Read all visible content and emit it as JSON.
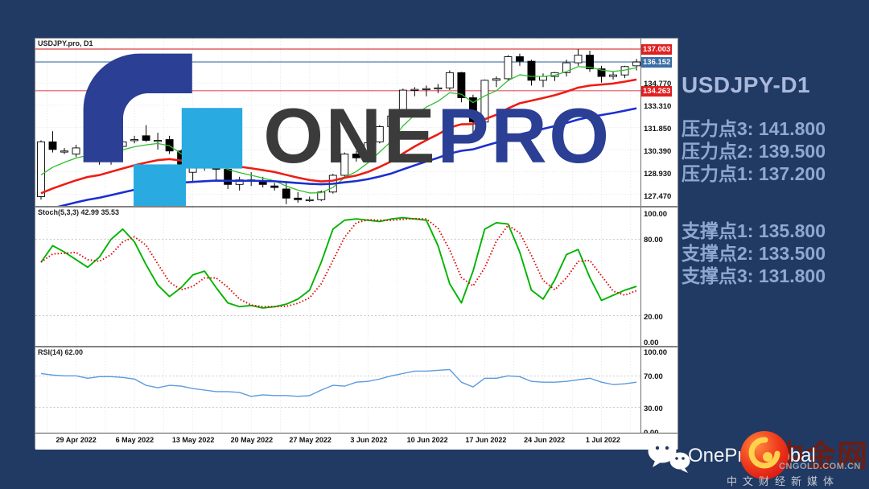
{
  "colors": {
    "page_bg": "#203a64",
    "tag_red": "#e02020",
    "tag_blue": "#3a6ea5",
    "side_text": "#90a7cf",
    "side_title": "#aab9dc",
    "cngold_red": "#6e1d12"
  },
  "logo": {
    "one": "ONE",
    "pro": "PRO"
  },
  "chart_window": {
    "symbol_label": "USDJPY.pro, D1",
    "stoch_label": "Stoch(5,3,3) 42.99 35.53",
    "rsi_label": "RSI(14) 62.00",
    "price_axis_labels": [
      {
        "text": "137.003",
        "value": 137.003,
        "style": "red"
      },
      {
        "text": "136.152",
        "value": 136.152,
        "style": "blue"
      },
      {
        "text": "134.770",
        "value": 134.77,
        "style": "plain"
      },
      {
        "text": "134.263",
        "value": 134.263,
        "style": "red"
      },
      {
        "text": "133.310",
        "value": 133.31,
        "style": "plain"
      },
      {
        "text": "131.850",
        "value": 131.85,
        "style": "plain"
      },
      {
        "text": "130.390",
        "value": 130.39,
        "style": "plain"
      },
      {
        "text": "128.930",
        "value": 128.93,
        "style": "plain"
      },
      {
        "text": "127.470",
        "value": 127.47,
        "style": "plain"
      }
    ],
    "stoch_axis_labels": [
      {
        "text": "100.00",
        "value": 100
      },
      {
        "text": "80.00",
        "value": 80
      },
      {
        "text": "20.00",
        "value": 20
      },
      {
        "text": "0.00",
        "value": 0
      }
    ],
    "rsi_axis_labels": [
      {
        "text": "100.00",
        "value": 100
      },
      {
        "text": "70.00",
        "value": 70
      },
      {
        "text": "30.00",
        "value": 30
      },
      {
        "text": "0.00",
        "value": 0
      }
    ]
  },
  "side_panel": {
    "title": "USDJPY-D1",
    "resistance": [
      {
        "label": "压力点3:",
        "value": "141.800"
      },
      {
        "label": "压力点2:",
        "value": "139.500"
      },
      {
        "label": "压力点1:",
        "value": "137.200"
      }
    ],
    "support": [
      {
        "label": "支撑点1:",
        "value": "135.800"
      },
      {
        "label": "支撑点2:",
        "value": "133.500"
      },
      {
        "label": "支撑点3:",
        "value": "131.800"
      }
    ]
  },
  "footer": {
    "brand": "OnePro Global",
    "cngold_name": "中金网",
    "cngold_domain": "CNGOLD.COM.CN",
    "tagline": "中文财经新媒体"
  },
  "chart_data": {
    "type": "candlestick",
    "symbol": "USDJPY",
    "timeframe": "D1",
    "x_labels": [
      "29 Apr 2022",
      "6 May 2022",
      "13 May 2022",
      "20 May 2022",
      "27 May 2022",
      "3 Jun 2022",
      "10 Jun 2022",
      "17 Jun 2022",
      "24 Jun 2022",
      "1 Jul 2022"
    ],
    "price_range": [
      127.05,
      137.45
    ],
    "price_gridlines": [
      136.23,
      134.77,
      133.31,
      131.85,
      130.39,
      128.93,
      127.47
    ],
    "overlay_lines": [
      {
        "price": 137.003,
        "color": "#cc1111",
        "width": 1
      },
      {
        "price": 136.152,
        "color": "#7b9cc0",
        "width": 1.6
      },
      {
        "price": 134.263,
        "color": "#e05565",
        "width": 1.2
      }
    ],
    "levels": {
      "resistance": [
        141.8,
        139.5,
        137.2
      ],
      "support": [
        135.8,
        133.5,
        131.8
      ]
    },
    "candles": [
      [
        127.3,
        131.0,
        127.1,
        130.9
      ],
      [
        130.9,
        131.6,
        130.2,
        130.4
      ],
      [
        130.3,
        130.5,
        130.1,
        130.3
      ],
      [
        130.1,
        130.7,
        129.9,
        130.5
      ],
      [
        130.4,
        131.0,
        129.9,
        130.4
      ],
      [
        130.8,
        131.0,
        129.4,
        129.7
      ],
      [
        129.7,
        130.9,
        129.4,
        130.7
      ],
      [
        130.6,
        131.1,
        130.2,
        130.9
      ],
      [
        131.0,
        131.3,
        130.8,
        131.05
      ],
      [
        131.3,
        132.0,
        130.9,
        131.0
      ],
      [
        131.0,
        131.5,
        130.4,
        131.0
      ],
      [
        131.05,
        131.3,
        130.1,
        130.3
      ],
      [
        130.3,
        130.4,
        128.6,
        128.9
      ],
      [
        128.9,
        129.5,
        128.3,
        129.3
      ],
      [
        129.25,
        129.5,
        129.0,
        129.2
      ],
      [
        129.2,
        129.5,
        128.4,
        129.1
      ],
      [
        129.1,
        129.2,
        127.8,
        128.1
      ],
      [
        128.1,
        128.6,
        127.7,
        128.4
      ],
      [
        128.4,
        128.9,
        128.0,
        128.3
      ],
      [
        128.3,
        128.6,
        127.9,
        128.1
      ],
      [
        128.0,
        128.2,
        127.7,
        127.9
      ],
      [
        127.8,
        128.3,
        126.8,
        127.2
      ],
      [
        127.2,
        127.6,
        126.9,
        127.1
      ],
      [
        127.1,
        127.3,
        126.95,
        127.1
      ],
      [
        127.1,
        127.7,
        127.0,
        127.6
      ],
      [
        127.6,
        128.8,
        127.5,
        128.7
      ],
      [
        128.7,
        130.2,
        128.6,
        130.1
      ],
      [
        130.1,
        130.3,
        129.6,
        129.85
      ],
      [
        129.85,
        130.95,
        129.7,
        130.85
      ],
      [
        130.9,
        132.0,
        130.8,
        131.9
      ],
      [
        131.9,
        132.7,
        131.6,
        132.6
      ],
      [
        132.6,
        134.4,
        132.5,
        134.3
      ],
      [
        134.3,
        134.5,
        133.9,
        134.35
      ],
      [
        134.35,
        134.6,
        133.9,
        134.4
      ],
      [
        134.4,
        134.7,
        134.1,
        134.45
      ],
      [
        134.45,
        135.6,
        134.3,
        135.45
      ],
      [
        135.45,
        135.5,
        133.5,
        133.8
      ],
      [
        133.8,
        134.0,
        131.5,
        132.2
      ],
      [
        132.2,
        135.0,
        131.9,
        134.95
      ],
      [
        134.95,
        135.2,
        134.5,
        135.05
      ],
      [
        135.05,
        136.6,
        134.9,
        136.5
      ],
      [
        136.5,
        136.7,
        135.9,
        136.2
      ],
      [
        136.2,
        136.3,
        134.6,
        134.95
      ],
      [
        134.95,
        135.4,
        134.5,
        135.2
      ],
      [
        135.2,
        135.5,
        134.9,
        135.45
      ],
      [
        135.45,
        136.3,
        135.2,
        136.1
      ],
      [
        136.1,
        137.0,
        135.9,
        136.6
      ],
      [
        136.6,
        136.9,
        135.5,
        135.7
      ],
      [
        135.7,
        135.9,
        134.8,
        135.2
      ],
      [
        135.2,
        135.5,
        135.0,
        135.3
      ],
      [
        135.3,
        135.9,
        135.1,
        135.85
      ],
      [
        135.9,
        136.35,
        135.6,
        136.152
      ]
    ],
    "moving_averages": [
      {
        "name": "fast",
        "alpha": 0.3,
        "seed": 127.8,
        "color": "#2fbf2f",
        "width": 1.3
      },
      {
        "name": "mid",
        "alpha": 0.11,
        "seed": 127.1,
        "color": "#ee1c12",
        "width": 2.6
      },
      {
        "name": "slow",
        "alpha": 0.05,
        "seed": 126.1,
        "color": "#1b2fd0",
        "width": 2.6
      }
    ],
    "stochastic": {
      "k_value": 42.99,
      "d_value": 35.53,
      "range": [
        0,
        100
      ],
      "gridlines": [
        80,
        20
      ],
      "k_color": "#00b400",
      "d_color": "#e00000",
      "k": [
        62,
        75,
        70,
        64,
        58,
        66,
        80,
        88,
        78,
        60,
        44,
        35,
        42,
        52,
        55,
        42,
        30,
        27,
        28,
        26,
        27,
        29,
        33,
        40,
        62,
        88,
        95,
        96,
        95,
        94,
        96,
        97,
        96,
        95,
        75,
        45,
        30,
        55,
        88,
        93,
        92,
        70,
        40,
        33,
        48,
        68,
        72,
        50,
        32,
        36,
        40,
        43
      ]
    },
    "rsi": {
      "value": 62.0,
      "range": [
        0,
        100
      ],
      "gridlines": [
        70,
        30
      ],
      "color": "#5c9ade",
      "values": [
        73,
        71,
        70,
        70,
        67,
        69,
        69,
        68,
        66,
        58,
        55,
        58,
        57,
        54,
        52,
        50,
        50,
        49,
        44,
        46,
        45,
        45,
        44,
        45,
        52,
        58,
        57,
        62,
        63,
        66,
        70,
        73,
        76,
        76,
        77,
        78,
        62,
        56,
        67,
        67,
        70,
        69,
        63,
        62,
        62,
        63,
        65,
        67,
        62,
        59,
        60,
        62
      ]
    }
  }
}
